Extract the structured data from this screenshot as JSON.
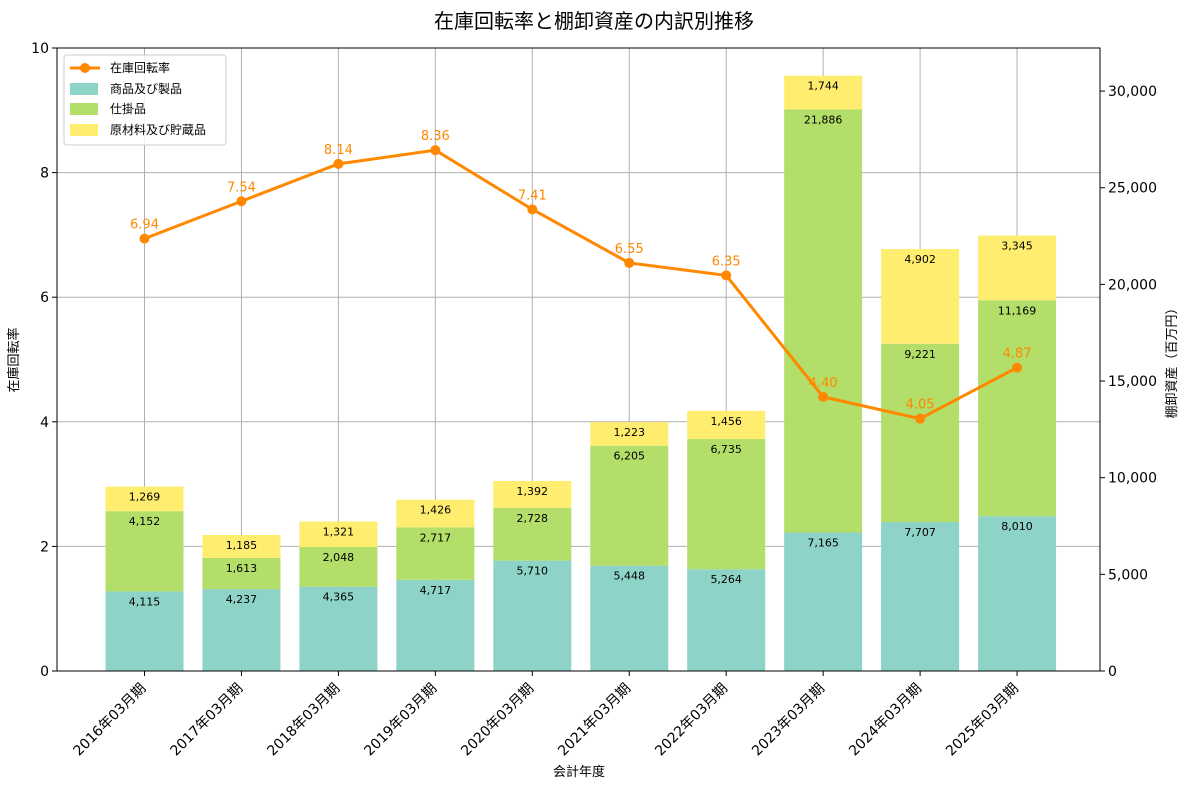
{
  "chart_data": {
    "type": "bar",
    "title": "在庫回転率と棚卸資産の内訳別推移",
    "xlabel": "会計年度",
    "ylabel_left": "在庫回転率",
    "ylabel_right": "棚卸資産（百万円）",
    "categories": [
      "2016年03月期",
      "2017年03月期",
      "2018年03月期",
      "2019年03月期",
      "2020年03月期",
      "2021年03月期",
      "2022年03月期",
      "2023年03月期",
      "2024年03月期",
      "2025年03月期"
    ],
    "bar_series": [
      {
        "name": "商品及び製品",
        "color": "#8dd3c7",
        "values": [
          4115,
          4237,
          4365,
          4717,
          5710,
          5448,
          5264,
          7165,
          7707,
          8010
        ]
      },
      {
        "name": "仕掛品",
        "color": "#b3de69",
        "values": [
          4152,
          1613,
          2048,
          2717,
          2728,
          6205,
          6735,
          21886,
          9221,
          11169
        ]
      },
      {
        "name": "原材料及び貯蔵品",
        "color": "#ffed6f",
        "values": [
          1269,
          1185,
          1321,
          1426,
          1392,
          1223,
          1456,
          1744,
          4902,
          3345
        ]
      }
    ],
    "line_series": {
      "name": "在庫回転率",
      "color": "#ff8800",
      "values": [
        6.94,
        7.54,
        8.14,
        8.36,
        7.41,
        6.55,
        6.35,
        4.4,
        4.05,
        4.87
      ],
      "labels": [
        "6.94",
        "7.54",
        "8.14",
        "8.36",
        "7.41",
        "6.55",
        "6.35",
        "4.40",
        "4.05",
        "4.87"
      ]
    },
    "y_left": {
      "lim": [
        0,
        10
      ],
      "ticks": [
        0,
        2,
        4,
        6,
        8,
        10
      ],
      "tick_labels": [
        "0",
        "2",
        "4",
        "6",
        "8",
        "10"
      ]
    },
    "y_right": {
      "lim": [
        0,
        32228
      ],
      "ticks": [
        0,
        5000,
        10000,
        15000,
        20000,
        25000,
        30000
      ],
      "tick_labels": [
        "0",
        "5,000",
        "10,000",
        "15,000",
        "20,000",
        "25,000",
        "30,000"
      ]
    },
    "grid": true,
    "legend_position": "top-left"
  }
}
